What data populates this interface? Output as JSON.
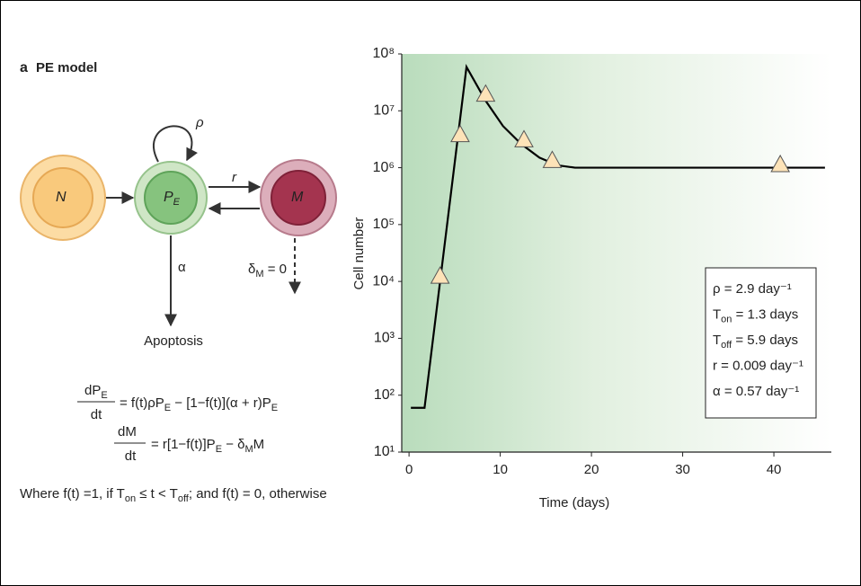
{
  "panel": {
    "letter": "a",
    "title": "PE model"
  },
  "diagram": {
    "nodes": [
      [
        {
          "text": "N"
        }
      ],
      [
        {
          "text": "P"
        },
        {
          "sub": "E"
        }
      ],
      [
        {
          "text": "M"
        }
      ]
    ],
    "self_loop_label": "ρ",
    "transfer_label": "r",
    "death_label": "α",
    "mature_death_label": [
      {
        "text": "δ"
      },
      {
        "sub": "M"
      },
      {
        "text": " = 0"
      }
    ],
    "sink": "Apoptosis"
  },
  "equations": [
    {
      "numerator": [
        {
          "text": "dP"
        },
        {
          "sub": "E"
        }
      ],
      "denominator": "dt",
      "rhs": [
        {
          "text": "= f(t)ρP"
        },
        {
          "sub": "E"
        },
        {
          "text": " − [1−f(t)](α + r)P"
        },
        {
          "sub": "E"
        }
      ]
    },
    {
      "numerator": [
        {
          "text": "dM"
        }
      ],
      "denominator": "dt",
      "rhs": [
        {
          "text": "= r[1−f(t)]P"
        },
        {
          "sub": "E"
        },
        {
          "text": " − δ"
        },
        {
          "sub": "M"
        },
        {
          "text": "M"
        }
      ]
    }
  ],
  "note": [
    {
      "text": "Where f(t) =1, if T"
    },
    {
      "sub": "on"
    },
    {
      "text": " ≤ t < T"
    },
    {
      "sub": "off"
    },
    {
      "text": "; and f(t) = 0, otherwise"
    }
  ],
  "chart_data": {
    "type": "line",
    "xlabel": "Time (days)",
    "ylabel": "Cell number",
    "log_y": true,
    "xlim": [
      -0.8,
      46.3
    ],
    "xticks": [
      0,
      10,
      20,
      30,
      40
    ],
    "ylim": [
      10,
      100000000
    ],
    "yticks": [
      {
        "value": 10,
        "label": "10¹"
      },
      {
        "value": 100,
        "label": "10²"
      },
      {
        "value": 1000,
        "label": "10³"
      },
      {
        "value": 10000,
        "label": "10⁴"
      },
      {
        "value": 100000,
        "label": "10⁵"
      },
      {
        "value": 1000000,
        "label": "10⁶"
      },
      {
        "value": 10000000,
        "label": "10⁷"
      },
      {
        "value": 100000000,
        "label": "10⁸"
      }
    ],
    "series": [
      {
        "color": "#000000",
        "x": [
          0.2,
          1.7,
          6.3,
          8.4,
          10.3,
          12.3,
          14.3,
          16.3,
          18.2,
          45.6
        ],
        "values": [
          60,
          60,
          59000000,
          15000000,
          5400000,
          2600000,
          1500000,
          1100000,
          1000000,
          1000000
        ]
      },
      {
        "color": "#fde3b8",
        "marker": "triangle",
        "x": [
          3.4,
          5.6,
          8.4,
          12.6,
          15.7,
          40.7
        ],
        "values": [
          12000,
          3700000,
          19000000,
          3000000,
          1300000,
          1100000
        ]
      }
    ],
    "annotations": [
      [
        {
          "text": "ρ = 2.9 day⁻¹"
        }
      ],
      [
        {
          "text": "T"
        },
        {
          "sub": "on"
        },
        {
          "text": " = 1.3 days"
        }
      ],
      [
        {
          "text": "T"
        },
        {
          "sub": "off"
        },
        {
          "text": " = 5.9 days"
        }
      ],
      [
        {
          "text": "r = 0.009 day⁻¹"
        }
      ],
      [
        {
          "text": "α = 0.57 day⁻¹"
        }
      ]
    ]
  }
}
